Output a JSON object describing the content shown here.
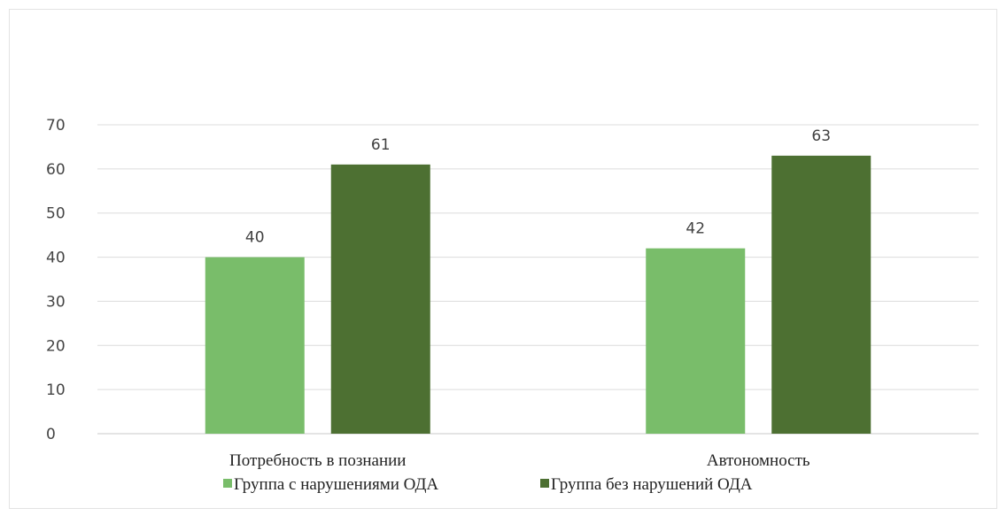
{
  "chart_data": {
    "type": "bar",
    "categories": [
      "Потребность в познании",
      "Автономность"
    ],
    "series": [
      {
        "name": "Группа с нарушениями ОДА",
        "values": [
          40,
          42
        ],
        "color": "#79bd6a"
      },
      {
        "name": "Группа без нарушений ОДА",
        "values": [
          61,
          63
        ],
        "color": "#4d7032"
      }
    ],
    "ylim": [
      0,
      70
    ],
    "yticks": [
      "0",
      "10",
      "20",
      "30",
      "40",
      "50",
      "60",
      "70"
    ],
    "grid": true,
    "legend": "bottom",
    "data_labels": true,
    "title": "",
    "xlabel": "",
    "ylabel": ""
  }
}
